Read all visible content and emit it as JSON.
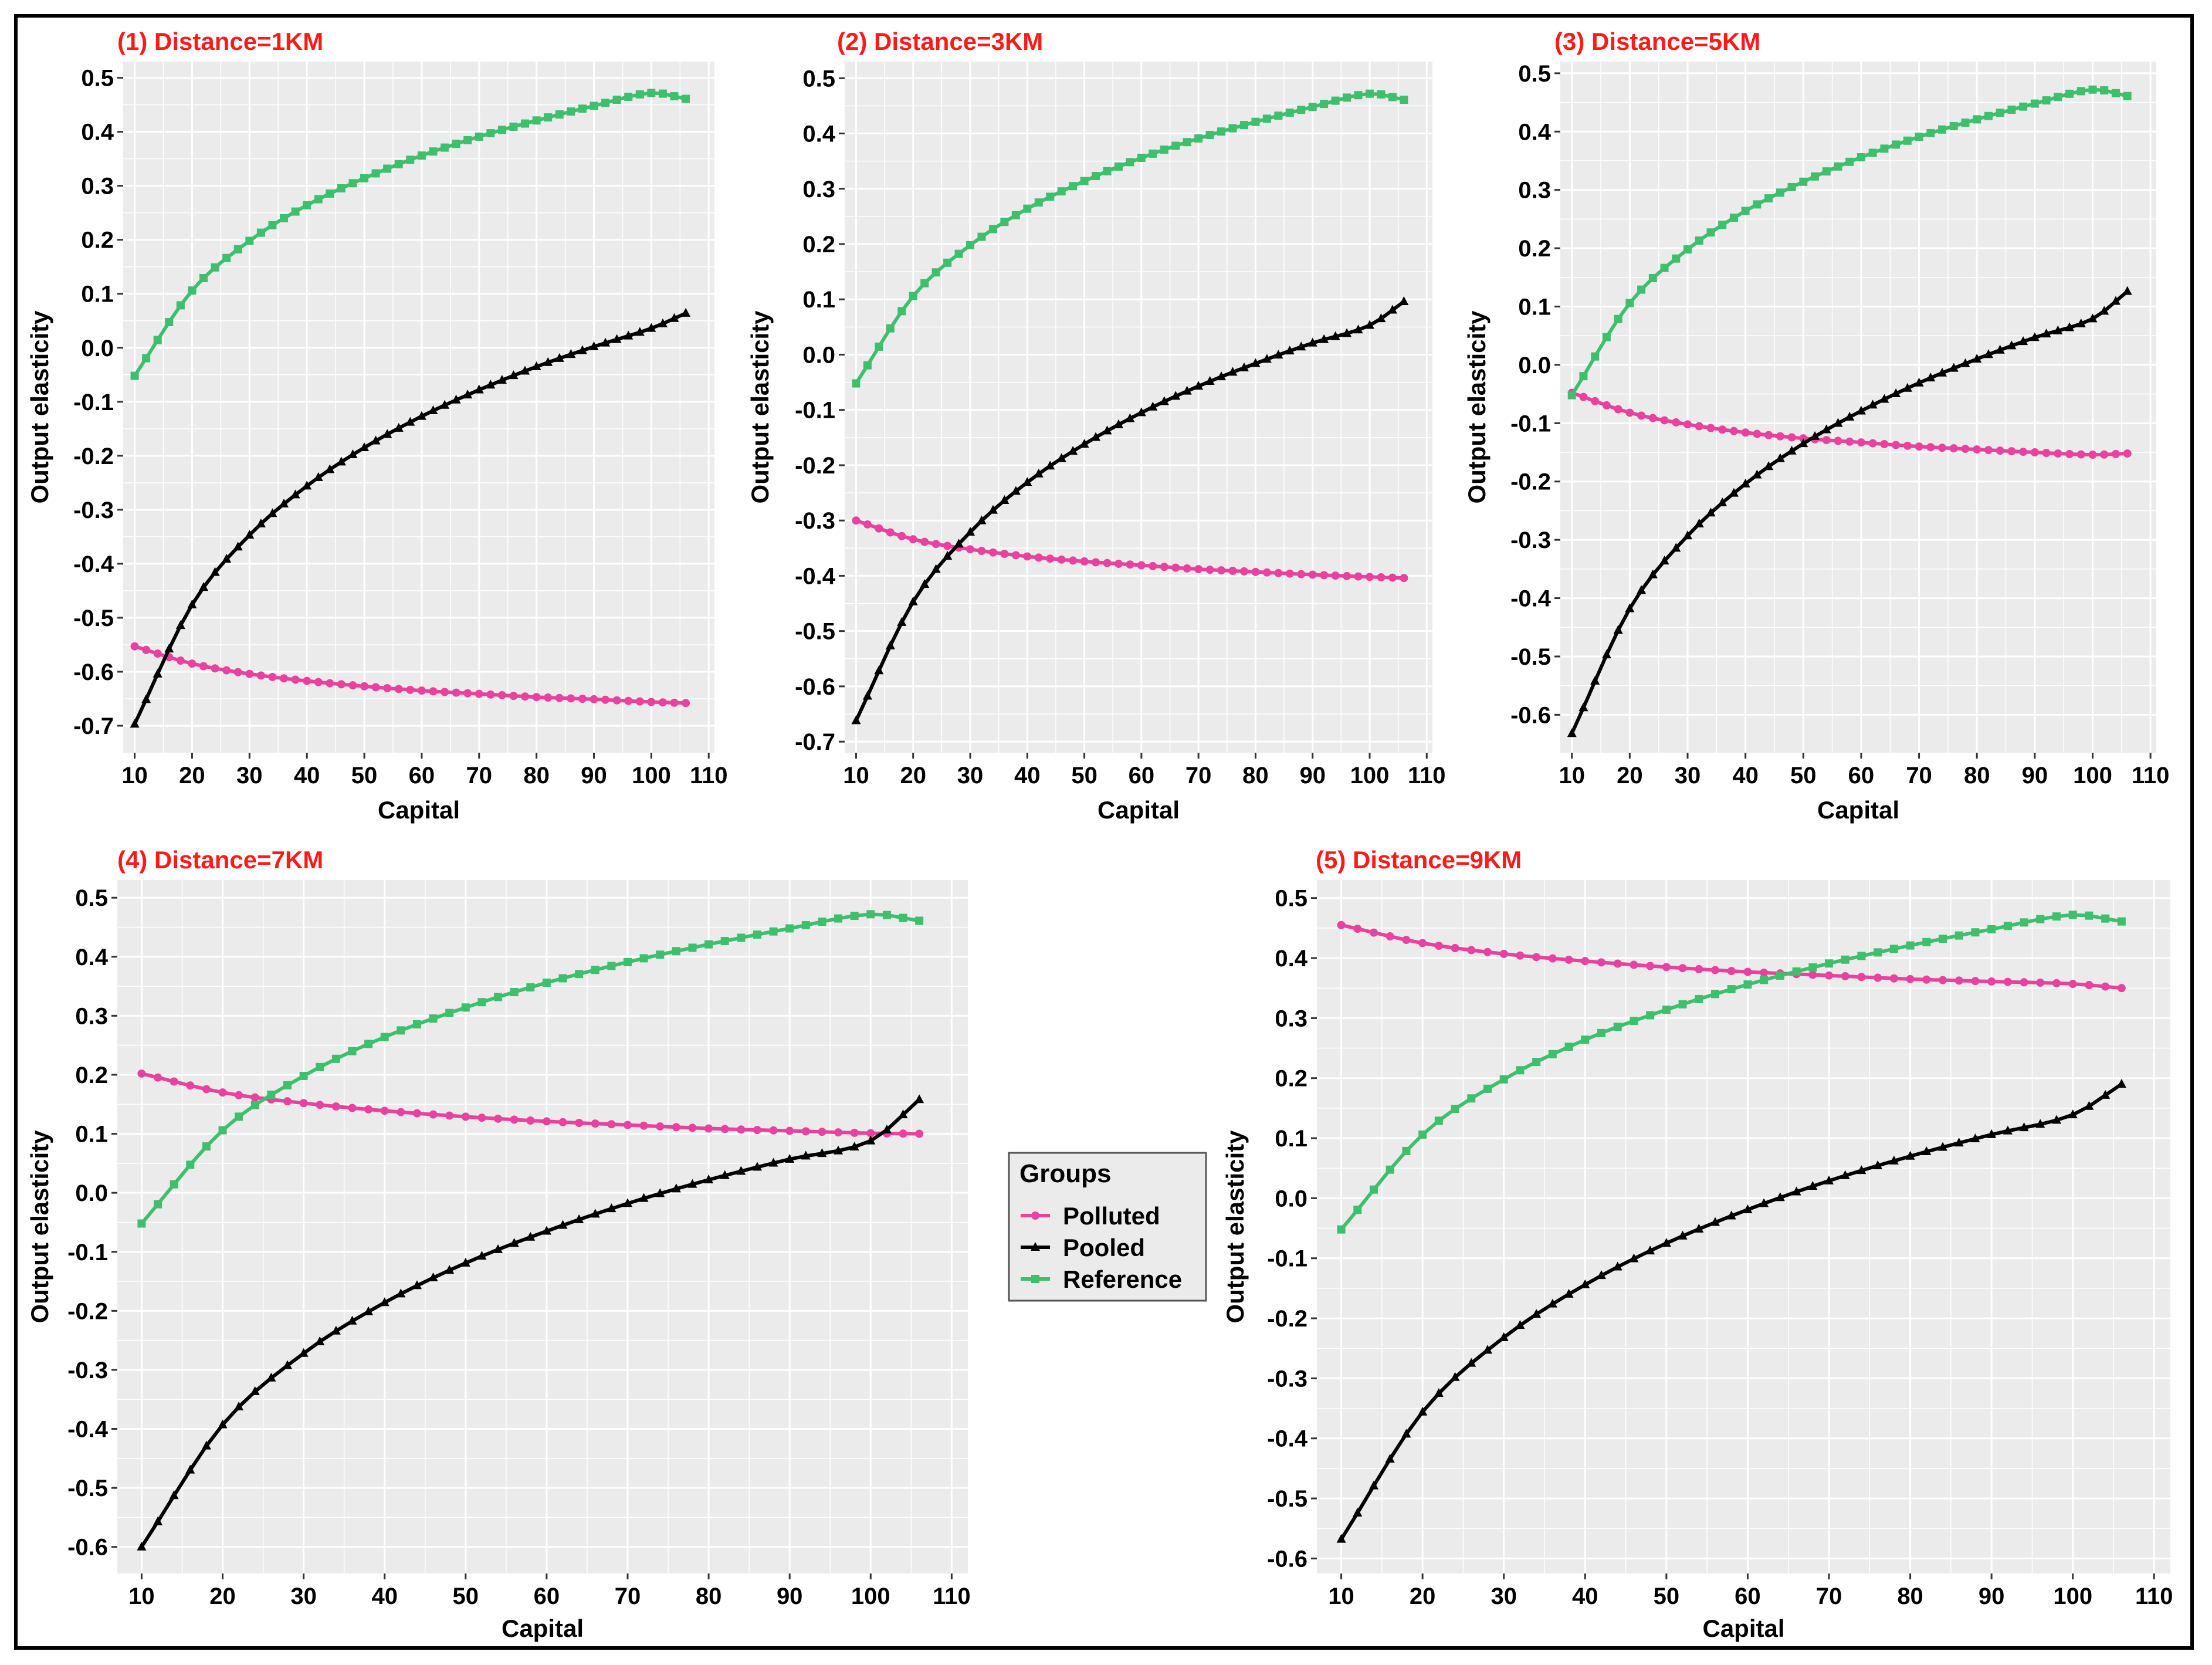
{
  "colors": {
    "polluted": "#e8419e",
    "pooled": "#000000",
    "reference": "#3ebf6e",
    "panel_bg": "#ebebeb",
    "grid": "#ffffff",
    "title": "#ff1a1a"
  },
  "legend": {
    "title": "Groups",
    "items": [
      {
        "key": "polluted",
        "label": "Polluted",
        "color": "#e8419e",
        "marker": "circle-icon"
      },
      {
        "key": "pooled",
        "label": "Pooled",
        "color": "#000000",
        "marker": "triangle-icon"
      },
      {
        "key": "reference",
        "label": "Reference",
        "color": "#3ebf6e",
        "marker": "square-icon"
      }
    ]
  },
  "chart_data": [
    {
      "type": "line",
      "title": "(1) Distance=1KM",
      "xlabel": "Capital",
      "ylabel": "Output elasticity",
      "xlim": [
        8,
        111
      ],
      "ylim": [
        -0.75,
        0.53
      ],
      "xticks": [
        10,
        20,
        30,
        40,
        50,
        60,
        70,
        80,
        90,
        100,
        110
      ],
      "xtick_labels": [
        "10",
        "20",
        "30",
        "40",
        "50",
        "60",
        "70",
        "80",
        "90",
        "100",
        "110"
      ],
      "yticks": [
        -0.7,
        -0.6,
        -0.5,
        -0.4,
        -0.3,
        -0.2,
        -0.1,
        0.0,
        0.1,
        0.2,
        0.3,
        0.4,
        0.5
      ],
      "ytick_labels": [
        "-0.7",
        "-0.6",
        "-0.5",
        "-0.4",
        "-0.3",
        "-0.2",
        "-0.1",
        "0.0",
        "0.1",
        "0.2",
        "0.3",
        "0.4",
        "0.5"
      ],
      "series": [
        {
          "name": "Polluted",
          "x": [
            10,
            20,
            30,
            40,
            50,
            60,
            70,
            80,
            90,
            100,
            106
          ],
          "values": [
            -0.553,
            -0.585,
            -0.604,
            -0.617,
            -0.627,
            -0.635,
            -0.641,
            -0.647,
            -0.651,
            -0.656,
            -0.658
          ]
        },
        {
          "name": "Pooled",
          "x": [
            10,
            20,
            30,
            40,
            50,
            60,
            70,
            80,
            90,
            100,
            106
          ],
          "values": [
            -0.697,
            -0.476,
            -0.347,
            -0.256,
            -0.185,
            -0.127,
            -0.078,
            -0.035,
            0.002,
            0.036,
            0.064
          ]
        },
        {
          "name": "Reference",
          "x": [
            10,
            20,
            30,
            40,
            50,
            60,
            70,
            80,
            90,
            100,
            106
          ],
          "values": [
            -0.052,
            0.106,
            0.198,
            0.264,
            0.314,
            0.356,
            0.391,
            0.421,
            0.448,
            0.472,
            0.461
          ]
        }
      ]
    },
    {
      "type": "line",
      "title": "(2) Distance=3KM",
      "xlabel": "Capital",
      "ylabel": "Output elasticity",
      "xlim": [
        8,
        111
      ],
      "ylim": [
        -0.72,
        0.53
      ],
      "xticks": [
        10,
        20,
        30,
        40,
        50,
        60,
        70,
        80,
        90,
        100,
        110
      ],
      "xtick_labels": [
        "10",
        "20",
        "30",
        "40",
        "50",
        "60",
        "70",
        "80",
        "90",
        "100",
        "110"
      ],
      "yticks": [
        -0.7,
        -0.6,
        -0.5,
        -0.4,
        -0.3,
        -0.2,
        -0.1,
        0.0,
        0.1,
        0.2,
        0.3,
        0.4,
        0.5
      ],
      "ytick_labels": [
        "-0.7",
        "-0.6",
        "-0.5",
        "-0.4",
        "-0.3",
        "-0.2",
        "-0.1",
        "0.0",
        "0.1",
        "0.2",
        "0.3",
        "0.4",
        "0.5"
      ],
      "series": [
        {
          "name": "Polluted",
          "x": [
            10,
            20,
            30,
            40,
            50,
            60,
            70,
            80,
            90,
            100,
            106
          ],
          "values": [
            -0.3,
            -0.334,
            -0.352,
            -0.365,
            -0.374,
            -0.381,
            -0.388,
            -0.393,
            -0.398,
            -0.402,
            -0.404
          ]
        },
        {
          "name": "Pooled",
          "x": [
            10,
            20,
            30,
            40,
            50,
            60,
            70,
            80,
            90,
            100,
            106
          ],
          "values": [
            -0.662,
            -0.447,
            -0.321,
            -0.231,
            -0.162,
            -0.105,
            -0.057,
            -0.016,
            0.021,
            0.053,
            0.096
          ]
        },
        {
          "name": "Reference",
          "x": [
            10,
            20,
            30,
            40,
            50,
            60,
            70,
            80,
            90,
            100,
            106
          ],
          "values": [
            -0.052,
            0.106,
            0.198,
            0.264,
            0.314,
            0.356,
            0.391,
            0.421,
            0.448,
            0.472,
            0.461
          ]
        }
      ]
    },
    {
      "type": "line",
      "title": "(3) Distance=5KM",
      "xlabel": "Capital",
      "ylabel": "Output elasticity",
      "xlim": [
        8,
        111
      ],
      "ylim": [
        -0.665,
        0.52
      ],
      "xticks": [
        10,
        20,
        30,
        40,
        50,
        60,
        70,
        80,
        90,
        100,
        110
      ],
      "xtick_labels": [
        "10",
        "20",
        "30",
        "40",
        "50",
        "60",
        "70",
        "80",
        "90",
        "100",
        "110"
      ],
      "yticks": [
        -0.6,
        -0.5,
        -0.4,
        -0.3,
        -0.2,
        -0.1,
        0.0,
        0.1,
        0.2,
        0.3,
        0.4,
        0.5
      ],
      "ytick_labels": [
        "-0.6",
        "-0.5",
        "-0.4",
        "-0.3",
        "-0.2",
        "-0.1",
        "0.0",
        "0.1",
        "0.2",
        "0.3",
        "0.4",
        "0.5"
      ],
      "series": [
        {
          "name": "Polluted",
          "x": [
            10,
            20,
            30,
            40,
            50,
            60,
            70,
            80,
            90,
            100,
            106
          ],
          "values": [
            -0.048,
            -0.082,
            -0.102,
            -0.116,
            -0.126,
            -0.133,
            -0.14,
            -0.145,
            -0.15,
            -0.154,
            -0.152
          ]
        },
        {
          "name": "Pooled",
          "x": [
            10,
            20,
            30,
            40,
            50,
            60,
            70,
            80,
            90,
            100,
            106
          ],
          "values": [
            -0.632,
            -0.418,
            -0.293,
            -0.204,
            -0.135,
            -0.079,
            -0.031,
            0.01,
            0.047,
            0.079,
            0.126
          ]
        },
        {
          "name": "Reference",
          "x": [
            10,
            20,
            30,
            40,
            50,
            60,
            70,
            80,
            90,
            100,
            106
          ],
          "values": [
            -0.052,
            0.106,
            0.198,
            0.264,
            0.314,
            0.356,
            0.391,
            0.421,
            0.448,
            0.472,
            0.461
          ]
        }
      ]
    },
    {
      "type": "line",
      "title": "(4) Distance=7KM",
      "xlabel": "Capital",
      "ylabel": "Output elasticity",
      "xlim": [
        7,
        112
      ],
      "ylim": [
        -0.645,
        0.53
      ],
      "xticks": [
        10,
        20,
        30,
        40,
        50,
        60,
        70,
        80,
        90,
        100,
        110
      ],
      "xtick_labels": [
        "10",
        "20",
        "30",
        "40",
        "50",
        "60",
        "70",
        "80",
        "90",
        "100",
        "110"
      ],
      "yticks": [
        -0.6,
        -0.5,
        -0.4,
        -0.3,
        -0.2,
        -0.1,
        0.0,
        0.1,
        0.2,
        0.3,
        0.4,
        0.5
      ],
      "ytick_labels": [
        "-0.6",
        "-0.5",
        "-0.4",
        "-0.3",
        "-0.2",
        "-0.1",
        "0.0",
        "0.1",
        "0.2",
        "0.3",
        "0.4",
        "0.5"
      ],
      "series": [
        {
          "name": "Polluted",
          "x": [
            10,
            20,
            30,
            40,
            50,
            60,
            70,
            80,
            90,
            100,
            106
          ],
          "values": [
            0.202,
            0.17,
            0.152,
            0.139,
            0.129,
            0.121,
            0.115,
            0.109,
            0.105,
            0.101,
            0.1
          ]
        },
        {
          "name": "Pooled",
          "x": [
            10,
            20,
            30,
            40,
            50,
            60,
            70,
            80,
            90,
            100,
            106
          ],
          "values": [
            -0.6,
            -0.393,
            -0.272,
            -0.186,
            -0.119,
            -0.065,
            -0.018,
            0.022,
            0.057,
            0.088,
            0.158
          ]
        },
        {
          "name": "Reference",
          "x": [
            10,
            20,
            30,
            40,
            50,
            60,
            70,
            80,
            90,
            100,
            106
          ],
          "values": [
            -0.052,
            0.106,
            0.198,
            0.264,
            0.314,
            0.356,
            0.391,
            0.421,
            0.448,
            0.472,
            0.461
          ]
        }
      ]
    },
    {
      "type": "line",
      "title": "(5) Distance=9KM",
      "xlabel": "Capital",
      "ylabel": "Output elasticity",
      "xlim": [
        7,
        112
      ],
      "ylim": [
        -0.625,
        0.53
      ],
      "xticks": [
        10,
        20,
        30,
        40,
        50,
        60,
        70,
        80,
        90,
        100,
        110
      ],
      "xtick_labels": [
        "10",
        "20",
        "30",
        "40",
        "50",
        "60",
        "70",
        "80",
        "90",
        "100",
        "110"
      ],
      "yticks": [
        -0.6,
        -0.5,
        -0.4,
        -0.3,
        -0.2,
        -0.1,
        0.0,
        0.1,
        0.2,
        0.3,
        0.4,
        0.5
      ],
      "ytick_labels": [
        "-0.6",
        "-0.5",
        "-0.4",
        "-0.3",
        "-0.2",
        "-0.1",
        "0.0",
        "0.1",
        "0.2",
        "0.3",
        "0.4",
        "0.5"
      ],
      "series": [
        {
          "name": "Polluted",
          "x": [
            10,
            20,
            30,
            40,
            50,
            60,
            70,
            80,
            90,
            100,
            106
          ],
          "values": [
            0.455,
            0.425,
            0.407,
            0.395,
            0.385,
            0.377,
            0.371,
            0.365,
            0.361,
            0.357,
            0.35
          ]
        },
        {
          "name": "Pooled",
          "x": [
            10,
            20,
            30,
            40,
            50,
            60,
            70,
            80,
            90,
            100,
            106
          ],
          "values": [
            -0.568,
            -0.356,
            -0.232,
            -0.144,
            -0.075,
            -0.019,
            0.029,
            0.07,
            0.106,
            0.139,
            0.19
          ]
        },
        {
          "name": "Reference",
          "x": [
            10,
            20,
            30,
            40,
            50,
            60,
            70,
            80,
            90,
            100,
            106
          ],
          "values": [
            -0.052,
            0.106,
            0.198,
            0.264,
            0.314,
            0.356,
            0.391,
            0.421,
            0.448,
            0.472,
            0.461
          ]
        }
      ]
    }
  ]
}
